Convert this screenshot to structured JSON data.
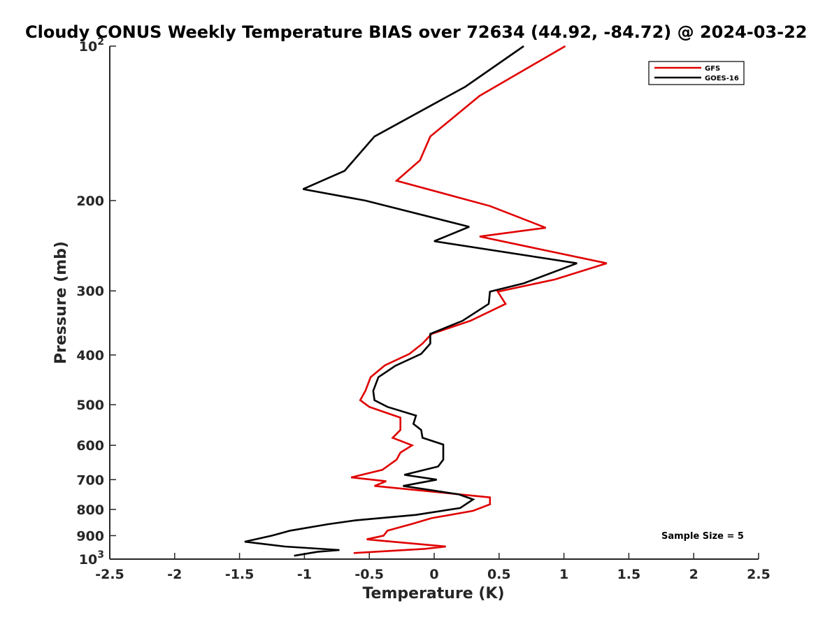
{
  "chart_data": {
    "type": "line",
    "title": "Cloudy CONUS Weekly Temperature BIAS over 72634 (44.92, -84.72) @ 2024-03-22",
    "xlabel": "Temperature (K)",
    "ylabel": "Pressure (mb)",
    "xlim": [
      -2.5,
      2.5
    ],
    "ylim": [
      100,
      1000
    ],
    "y_scale": "log",
    "y_reversed": true,
    "x_ticks": [
      {
        "value": -2.5,
        "label": "-2.5"
      },
      {
        "value": -2,
        "label": "-2"
      },
      {
        "value": -1.5,
        "label": "-1.5"
      },
      {
        "value": -1,
        "label": "-1"
      },
      {
        "value": -0.5,
        "label": "-0.5"
      },
      {
        "value": 0,
        "label": "0"
      },
      {
        "value": 0.5,
        "label": "0.5"
      },
      {
        "value": 1,
        "label": "1"
      },
      {
        "value": 1.5,
        "label": "1.5"
      },
      {
        "value": 2,
        "label": "2"
      },
      {
        "value": 2.5,
        "label": "2.5"
      }
    ],
    "y_ticks": [
      {
        "value": 100,
        "label": "10",
        "sup": "2"
      },
      {
        "value": 200,
        "label": "200"
      },
      {
        "value": 300,
        "label": "300"
      },
      {
        "value": 400,
        "label": "400"
      },
      {
        "value": 500,
        "label": "500"
      },
      {
        "value": 600,
        "label": "600"
      },
      {
        "value": 700,
        "label": "700"
      },
      {
        "value": 800,
        "label": "800"
      },
      {
        "value": 900,
        "label": "900"
      },
      {
        "value": 1000,
        "label": "10",
        "sup": "3"
      }
    ],
    "grid": false,
    "legend_position": "top-right",
    "annotation": "Sample Size = 5",
    "series": [
      {
        "name": "GFS",
        "color": "#e00000",
        "points": [
          [
            1.01,
            100
          ],
          [
            0.35,
            125
          ],
          [
            -0.03,
            150
          ],
          [
            -0.11,
            167
          ],
          [
            -0.29,
            183
          ],
          [
            0.43,
            205
          ],
          [
            0.86,
            226
          ],
          [
            0.35,
            235
          ],
          [
            1.33,
            265
          ],
          [
            0.93,
            285
          ],
          [
            0.49,
            301
          ],
          [
            0.55,
            318
          ],
          [
            0.28,
            343
          ],
          [
            -0.02,
            364
          ],
          [
            -0.09,
            380
          ],
          [
            -0.19,
            398
          ],
          [
            -0.38,
            419
          ],
          [
            -0.49,
            442
          ],
          [
            -0.53,
            470
          ],
          [
            -0.57,
            490
          ],
          [
            -0.5,
            505
          ],
          [
            -0.26,
            530
          ],
          [
            -0.26,
            560
          ],
          [
            -0.32,
            580
          ],
          [
            -0.17,
            600
          ],
          [
            -0.26,
            620
          ],
          [
            -0.29,
            640
          ],
          [
            -0.4,
            670
          ],
          [
            -0.64,
            693
          ],
          [
            -0.37,
            705
          ],
          [
            -0.46,
            720
          ],
          [
            0.2,
            748
          ],
          [
            0.43,
            758
          ],
          [
            0.43,
            782
          ],
          [
            0.3,
            805
          ],
          [
            -0.02,
            832
          ],
          [
            -0.18,
            855
          ],
          [
            -0.36,
            880
          ],
          [
            -0.39,
            900
          ],
          [
            -0.52,
            915
          ],
          [
            -0.42,
            920
          ],
          [
            0.09,
            945
          ],
          [
            -0.07,
            955
          ],
          [
            -0.62,
            973
          ]
        ]
      },
      {
        "name": "GOES-16",
        "color": "#000000",
        "points": [
          [
            0.69,
            100
          ],
          [
            0.24,
            120
          ],
          [
            -0.46,
            150
          ],
          [
            -0.69,
            175
          ],
          [
            -1.01,
            190
          ],
          [
            -0.53,
            200
          ],
          [
            0.27,
            225
          ],
          [
            0.0,
            240
          ],
          [
            1.1,
            265
          ],
          [
            0.69,
            290
          ],
          [
            0.43,
            301
          ],
          [
            0.42,
            318
          ],
          [
            0.22,
            343
          ],
          [
            -0.03,
            364
          ],
          [
            -0.03,
            380
          ],
          [
            -0.1,
            398
          ],
          [
            -0.3,
            420
          ],
          [
            -0.43,
            442
          ],
          [
            -0.47,
            470
          ],
          [
            -0.46,
            490
          ],
          [
            -0.36,
            505
          ],
          [
            -0.14,
            525
          ],
          [
            -0.16,
            545
          ],
          [
            -0.1,
            560
          ],
          [
            -0.09,
            580
          ],
          [
            0.07,
            598
          ],
          [
            0.07,
            620
          ],
          [
            0.07,
            640
          ],
          [
            0.03,
            660
          ],
          [
            -0.23,
            685
          ],
          [
            0.02,
            700
          ],
          [
            -0.24,
            720
          ],
          [
            0.19,
            748
          ],
          [
            0.3,
            765
          ],
          [
            0.2,
            795
          ],
          [
            -0.14,
            820
          ],
          [
            -0.6,
            840
          ],
          [
            -0.82,
            855
          ],
          [
            -1.11,
            880
          ],
          [
            -1.25,
            900
          ],
          [
            -1.46,
            925
          ],
          [
            -1.15,
            945
          ],
          [
            -0.73,
            960
          ],
          [
            -0.9,
            968
          ],
          [
            -1.08,
            985
          ]
        ]
      }
    ]
  }
}
